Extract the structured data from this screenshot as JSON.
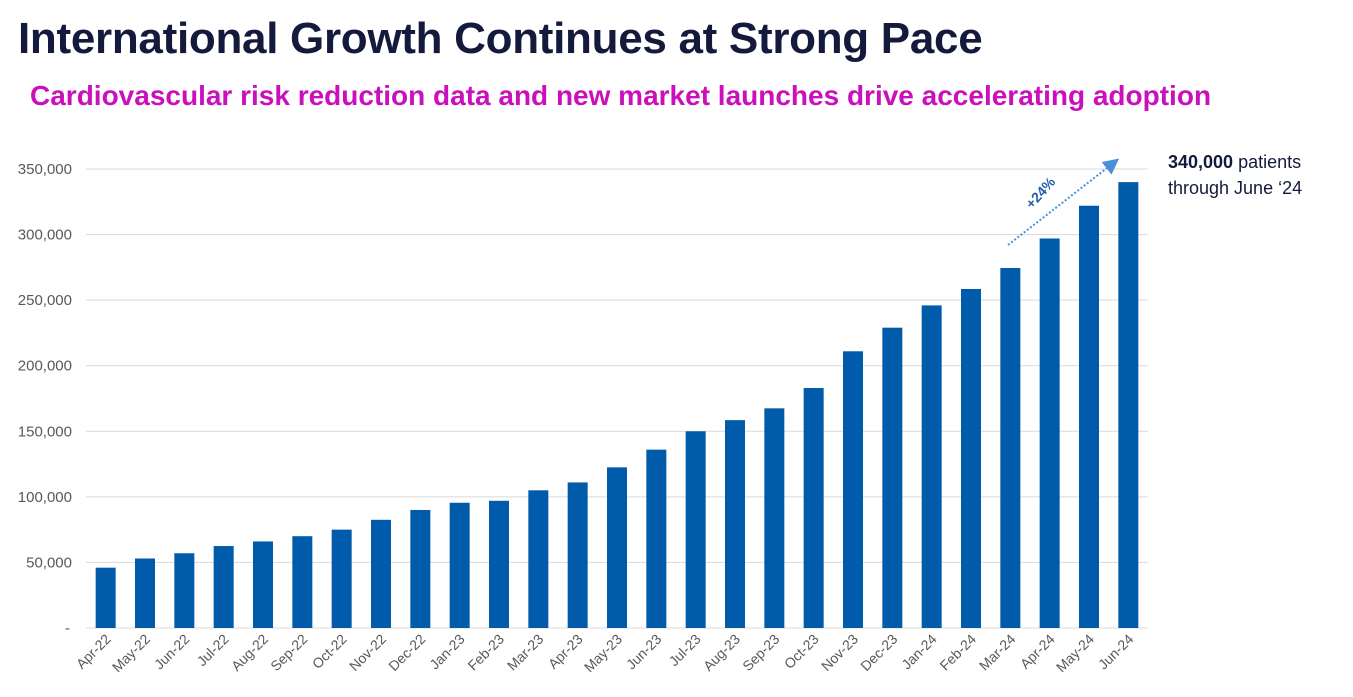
{
  "title": "International Growth Continues at Strong Pace",
  "subtitle": "Cardiovascular risk reduction data and new market launches drive accelerating adoption",
  "callout": {
    "value": "340,000",
    "text_1": " patients",
    "text_2": "through June ‘24"
  },
  "annotation": {
    "label": "+24%"
  },
  "colors": {
    "bar": "#005cab",
    "title": "#141a3c",
    "subtitle": "#cc0fbd",
    "grid": "#d9d9d9",
    "arrow": "#4a90d9"
  },
  "chart_data": {
    "type": "bar",
    "title": "",
    "xlabel": "",
    "ylabel": "",
    "ylim": [
      0,
      350000
    ],
    "yticks": [
      0,
      50000,
      100000,
      150000,
      200000,
      250000,
      300000,
      350000
    ],
    "ytick_labels": [
      "-",
      "50,000",
      "100,000",
      "150,000",
      "200,000",
      "250,000",
      "300,000",
      "350,000"
    ],
    "grid": true,
    "categories": [
      "Apr-22",
      "May-22",
      "Jun-22",
      "Jul-22",
      "Aug-22",
      "Sep-22",
      "Oct-22",
      "Nov-22",
      "Dec-22",
      "Jan-23",
      "Feb-23",
      "Mar-23",
      "Apr-23",
      "May-23",
      "Jun-23",
      "Jul-23",
      "Aug-23",
      "Sep-23",
      "Oct-23",
      "Nov-23",
      "Dec-23",
      "Jan-24",
      "Feb-24",
      "Mar-24",
      "Apr-24",
      "May-24",
      "Jun-24"
    ],
    "values": [
      46000,
      53000,
      57000,
      62500,
      66000,
      70000,
      75000,
      82500,
      90000,
      95500,
      97000,
      105000,
      111000,
      122500,
      136000,
      150000,
      158500,
      167500,
      183000,
      211000,
      229000,
      246000,
      258500,
      274500,
      297000,
      322000,
      340000
    ]
  }
}
